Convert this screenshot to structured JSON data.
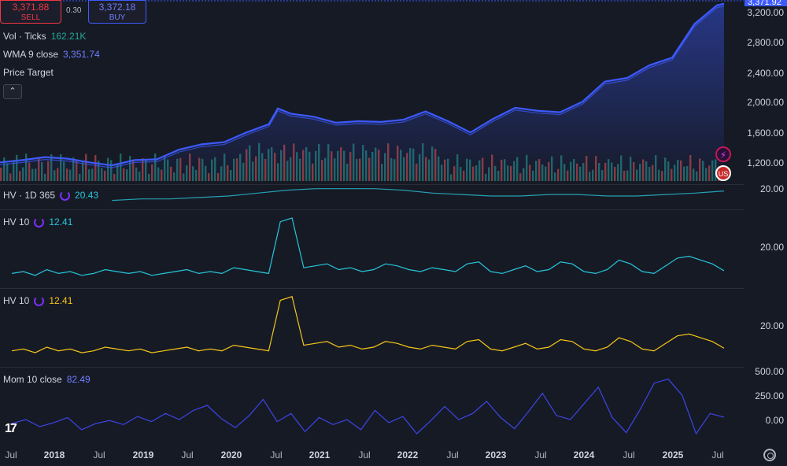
{
  "trade": {
    "sell_price": "3,371.88",
    "sell_label": "SELL",
    "spread": "0.30",
    "buy_price": "3,372.18",
    "buy_label": "BUY"
  },
  "legend": {
    "vol_label": "Vol · Ticks",
    "vol_value": "162.21K",
    "wma_label": "WMA 9 close",
    "wma_value": "3,351.74",
    "price_target_label": "Price Target",
    "hv365_label": "HV · 1D 365",
    "hv365_value": "20.43",
    "hv10a_label": "HV 10",
    "hv10a_value": "12.41",
    "hv10b_label": "HV 10",
    "hv10b_value": "12.41",
    "mom_label": "Mom 10 close",
    "mom_value": "82.49"
  },
  "collapse_button": {
    "icon": "chevron-up-icon",
    "glyph": "⌃"
  },
  "price_axis": {
    "labels": [
      "3,200.00",
      "2,800.00",
      "2,400.00",
      "2,000.00",
      "1,600.00",
      "1,200.00"
    ],
    "current_price_tag": "3,371.92"
  },
  "hv365_axis": {
    "label": "20.00"
  },
  "hv10a_axis": {
    "label": "20.00"
  },
  "hv10b_axis": {
    "label": "20.00"
  },
  "mom_axis": {
    "labels": [
      "500.00",
      "250.00",
      "0.00"
    ]
  },
  "time_axis": [
    {
      "text": "Jul",
      "year": false
    },
    {
      "text": "2018",
      "year": true
    },
    {
      "text": "Jul",
      "year": false
    },
    {
      "text": "2019",
      "year": true
    },
    {
      "text": "Jul",
      "year": false
    },
    {
      "text": "2020",
      "year": true
    },
    {
      "text": "Jul",
      "year": false
    },
    {
      "text": "2021",
      "year": true
    },
    {
      "text": "Jul",
      "year": false
    },
    {
      "text": "2022",
      "year": true
    },
    {
      "text": "Jul",
      "year": false
    },
    {
      "text": "2023",
      "year": true
    },
    {
      "text": "Jul",
      "year": false
    },
    {
      "text": "2024",
      "year": true
    },
    {
      "text": "Jul",
      "year": false
    },
    {
      "text": "2025",
      "year": true
    },
    {
      "text": "Jul",
      "year": false
    }
  ],
  "badges": {
    "lightning": "⚡",
    "flag": "US"
  },
  "logo": {
    "text": "17"
  },
  "colors": {
    "price_line": "#3d5afe",
    "hv365": "#26a0b4",
    "hv10a": "#26c6da",
    "hv10b": "#f5c518",
    "mom": "#3d45e6",
    "vol_up": "#26a69a",
    "vol_down": "#ef5350"
  },
  "chart_data": {
    "type": "line",
    "price_series": {
      "name": "WMA 9 close",
      "x": [
        2017.5,
        2017.75,
        2018.0,
        2018.25,
        2018.5,
        2018.75,
        2019.0,
        2019.25,
        2019.5,
        2019.75,
        2020.0,
        2020.25,
        2020.5,
        2020.6,
        2020.75,
        2021.0,
        2021.25,
        2021.5,
        2021.75,
        2022.0,
        2022.25,
        2022.5,
        2022.75,
        2023.0,
        2023.25,
        2023.5,
        2023.75,
        2024.0,
        2024.25,
        2024.5,
        2024.75,
        2025.0,
        2025.25,
        2025.5,
        2025.58
      ],
      "y": [
        1250,
        1280,
        1320,
        1300,
        1250,
        1210,
        1280,
        1290,
        1420,
        1490,
        1520,
        1650,
        1760,
        1970,
        1900,
        1860,
        1780,
        1800,
        1790,
        1820,
        1930,
        1800,
        1650,
        1830,
        1980,
        1940,
        1920,
        2060,
        2330,
        2380,
        2550,
        2650,
        3100,
        3350,
        3372
      ]
    },
    "hv365": {
      "name": "HV · 1D 365",
      "start": 2018.75,
      "values": [
        14,
        15,
        15,
        16,
        17,
        19,
        21,
        22,
        22,
        22,
        21,
        19,
        18,
        17,
        17,
        18,
        18,
        17,
        17,
        18,
        19,
        20.43
      ]
    },
    "hv10": {
      "name": "HV 10",
      "values": [
        11,
        12,
        10,
        13,
        11,
        12,
        10,
        11,
        13,
        12,
        11,
        12,
        10,
        11,
        12,
        13,
        11,
        12,
        11,
        14,
        13,
        12,
        11,
        38,
        40,
        14,
        15,
        16,
        13,
        14,
        12,
        13,
        16,
        15,
        13,
        12,
        14,
        13,
        12,
        16,
        17,
        12,
        11,
        13,
        15,
        12,
        13,
        17,
        16,
        12,
        11,
        13,
        18,
        16,
        12,
        11,
        15,
        19,
        20,
        18,
        16,
        12.41
      ]
    },
    "mom": {
      "name": "Mom 10 close",
      "values": [
        20,
        60,
        -10,
        30,
        80,
        -40,
        20,
        50,
        10,
        90,
        40,
        120,
        60,
        150,
        200,
        70,
        -20,
        100,
        260,
        40,
        120,
        -60,
        80,
        10,
        60,
        -40,
        150,
        30,
        90,
        -80,
        50,
        190,
        60,
        120,
        240,
        80,
        -30,
        140,
        320,
        100,
        60,
        220,
        380,
        80,
        -70,
        160,
        420,
        460,
        300,
        -80,
        120,
        82.49
      ]
    },
    "ylim_price": [
      1000,
      3400
    ],
    "ylim_mom": [
      -150,
      550
    ]
  }
}
